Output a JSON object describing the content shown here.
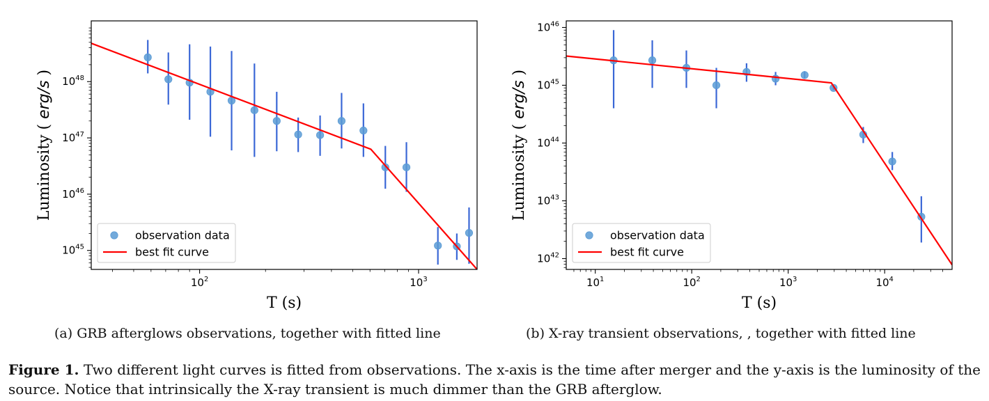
{
  "chart_data": [
    {
      "type": "scatter",
      "panel": "a",
      "xscale": "log",
      "yscale": "log",
      "xlim": [
        32,
        1850
      ],
      "ylim": [
        4.6e+44,
        1.2e+49
      ],
      "xlabel": "T (s)",
      "ylabel_prefix": "Luminosity (",
      "ylabel_unit": "erg/s",
      "ylabel_suffix": ")",
      "x_ticks": [
        {
          "base": "10",
          "exp": "2",
          "value": 100
        },
        {
          "base": "10",
          "exp": "3",
          "value": 1000
        }
      ],
      "y_ticks": [
        {
          "base": "10",
          "exp": "45",
          "value": 1e+45
        },
        {
          "base": "10",
          "exp": "46",
          "value": 1e+46
        },
        {
          "base": "10",
          "exp": "47",
          "value": 1e+47
        },
        {
          "base": "10",
          "exp": "48",
          "value": 1e+48
        }
      ],
      "grid": false,
      "legend_position": "lower-left",
      "series": [
        {
          "name": "observation data",
          "kind": "points",
          "color": "#5b9bd5",
          "errorbar_color": "#3a67d6",
          "points": [
            {
              "x": 58,
              "y": 2.7e+48,
              "ylow": 1.4e+48,
              "yhigh": 5.5e+48
            },
            {
              "x": 72,
              "y": 1.1e+48,
              "ylow": 3.9e+47,
              "yhigh": 3.3e+48
            },
            {
              "x": 90,
              "y": 9.6e+47,
              "ylow": 2.1e+47,
              "yhigh": 4.6e+48
            },
            {
              "x": 112,
              "y": 6.6e+47,
              "ylow": 1.05e+47,
              "yhigh": 4.2e+48
            },
            {
              "x": 140,
              "y": 4.6e+47,
              "ylow": 6e+46,
              "yhigh": 3.5e+48
            },
            {
              "x": 178,
              "y": 3.1e+47,
              "ylow": 4.6e+46,
              "yhigh": 2.1e+48
            },
            {
              "x": 225,
              "y": 2e+47,
              "ylow": 5.8e+46,
              "yhigh": 6.6e+47
            },
            {
              "x": 282,
              "y": 1.15e+47,
              "ylow": 5.6e+46,
              "yhigh": 2.3e+47
            },
            {
              "x": 355,
              "y": 1.12e+47,
              "ylow": 4.8e+46,
              "yhigh": 2.5e+47
            },
            {
              "x": 445,
              "y": 2e+47,
              "ylow": 6.5e+46,
              "yhigh": 6.3e+47
            },
            {
              "x": 560,
              "y": 1.35e+47,
              "ylow": 4.6e+46,
              "yhigh": 4.1e+47
            },
            {
              "x": 705,
              "y": 3e+46,
              "ylow": 1.25e+46,
              "yhigh": 7.2e+46
            },
            {
              "x": 880,
              "y": 3e+46,
              "ylow": 1.1e+46,
              "yhigh": 8.4e+46
            },
            {
              "x": 1225,
              "y": 1.22e+45,
              "ylow": 5.6e+44,
              "yhigh": 2.6e+45
            },
            {
              "x": 1495,
              "y": 1.18e+45,
              "ylow": 6.8e+44,
              "yhigh": 2e+45
            },
            {
              "x": 1700,
              "y": 2.05e+45,
              "ylow": 5.8e+44,
              "yhigh": 5.8e+45
            }
          ]
        },
        {
          "name": "best fit curve",
          "kind": "line",
          "color": "#ff0000",
          "x": [
            32,
            605,
            1850
          ],
          "y": [
            4.8e+48,
            6.3e+46,
            4.6e+44
          ]
        }
      ]
    },
    {
      "type": "scatter",
      "panel": "b",
      "xscale": "log",
      "yscale": "log",
      "xlim": [
        5,
        50000
      ],
      "ylim": [
        6.5e+41,
        1.3e+46
      ],
      "xlabel": "T (s)",
      "ylabel_prefix": "Luminosity (",
      "ylabel_unit": "erg/s",
      "ylabel_suffix": ")",
      "x_ticks": [
        {
          "base": "10",
          "exp": "1",
          "value": 10
        },
        {
          "base": "10",
          "exp": "2",
          "value": 100
        },
        {
          "base": "10",
          "exp": "3",
          "value": 1000
        },
        {
          "base": "10",
          "exp": "4",
          "value": 10000
        }
      ],
      "y_ticks": [
        {
          "base": "10",
          "exp": "42",
          "value": 1e+42
        },
        {
          "base": "10",
          "exp": "43",
          "value": 1e+43
        },
        {
          "base": "10",
          "exp": "44",
          "value": 1e+44
        },
        {
          "base": "10",
          "exp": "45",
          "value": 1e+45
        },
        {
          "base": "10",
          "exp": "46",
          "value": 1e+46
        }
      ],
      "grid": false,
      "legend_position": "lower-left",
      "series": [
        {
          "name": "observation data",
          "kind": "points",
          "color": "#5b9bd5",
          "errorbar_color": "#3a67d6",
          "points": [
            {
              "x": 15.5,
              "y": 2.7e+45,
              "ylow": 4e+44,
              "yhigh": 9e+45
            },
            {
              "x": 39,
              "y": 2.7e+45,
              "ylow": 9e+44,
              "yhigh": 6e+45
            },
            {
              "x": 88,
              "y": 2e+45,
              "ylow": 9e+44,
              "yhigh": 4e+45
            },
            {
              "x": 180,
              "y": 1e+45,
              "ylow": 4e+44,
              "yhigh": 2e+45
            },
            {
              "x": 370,
              "y": 1.7e+45,
              "ylow": 1.15e+45,
              "yhigh": 2.4e+45
            },
            {
              "x": 740,
              "y": 1.3e+45,
              "ylow": 1e+45,
              "yhigh": 1.7e+45
            },
            {
              "x": 1480,
              "y": 1.5e+45,
              "ylow": 1.3e+45,
              "yhigh": 1.75e+45
            },
            {
              "x": 2950,
              "y": 9e+44,
              "ylow": 8.3e+44,
              "yhigh": 9.8e+44
            },
            {
              "x": 6000,
              "y": 1.4e+44,
              "ylow": 1e+44,
              "yhigh": 1.9e+44
            },
            {
              "x": 12000,
              "y": 4.8e+43,
              "ylow": 3.4e+43,
              "yhigh": 7e+43
            },
            {
              "x": 24000,
              "y": 5.3e+42,
              "ylow": 1.9e+42,
              "yhigh": 1.2e+43
            }
          ]
        },
        {
          "name": "best fit curve",
          "kind": "line",
          "color": "#ff0000",
          "x": [
            5,
            2800,
            50000
          ],
          "y": [
            3.2e+45,
            1.1e+45,
            7.8e+41
          ]
        }
      ]
    }
  ],
  "captions": {
    "a": "(a) GRB afterglows observations, together with fitted line",
    "b": "(b) X-ray transient observations, , together with fitted line"
  },
  "figure_caption": {
    "label": "Figure 1.",
    "text": "Two different light curves is fitted from observations. The x-axis is the time after merger and the y-axis is the luminosity of the source. Notice that intrinsically the X-ray transient is much dimmer than the GRB afterglow."
  }
}
